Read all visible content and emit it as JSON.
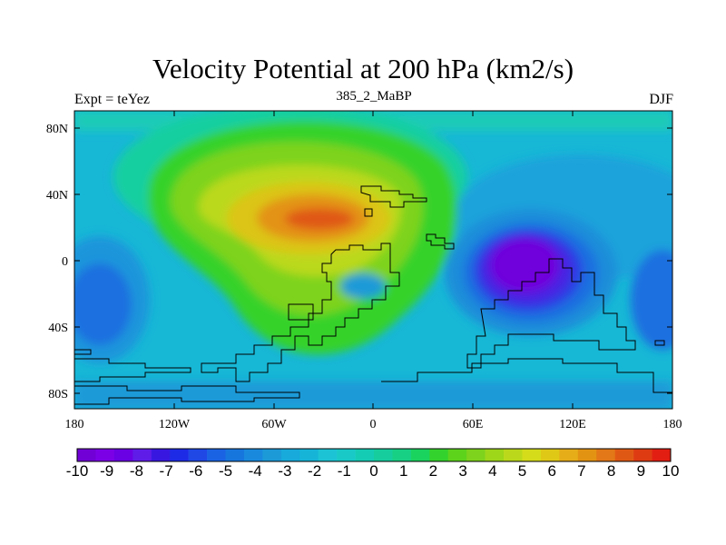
{
  "title": "Velocity Potential at 200 hPa (km2/s)",
  "subtitle_left": "Expt = teYez",
  "subtitle_center": "385_2_MaBP",
  "subtitle_right": "DJF",
  "y_tick_labels": [
    "80N",
    "40N",
    "0",
    "40S",
    "80S"
  ],
  "x_tick_labels": [
    "180",
    "120W",
    "60W",
    "0",
    "60E",
    "120E",
    "180"
  ],
  "colorbar": {
    "labels": [
      "-10",
      "-9",
      "-8",
      "-7",
      "-6",
      "-5",
      "-4",
      "-3",
      "-2",
      "-1",
      "0",
      "1",
      "2",
      "3",
      "4",
      "5",
      "6",
      "7",
      "8",
      "9",
      "10"
    ],
    "colors": [
      "#7100d6",
      "#7b00e6",
      "#6a00e4",
      "#5f1ce8",
      "#3818e0",
      "#1e2be6",
      "#1f48e5",
      "#1a63e3",
      "#1776de",
      "#1989de",
      "#1c9ad8",
      "#17aadb",
      "#16b5d8",
      "#1cc3d4",
      "#18c9c8",
      "#14ccb4",
      "#16cd9e",
      "#18d084",
      "#1ad35e",
      "#34d22c",
      "#5dd31c",
      "#7ed31c",
      "#9ed619",
      "#bbd91a",
      "#d5dc1a",
      "#e0c816",
      "#e6ad19",
      "#e39312",
      "#e27817",
      "#e05914",
      "#de3b12",
      "#e21e12"
    ]
  },
  "chart_data": {
    "type": "contour-map",
    "variable": "Velocity Potential at 200 hPa",
    "units": "km2/s",
    "experiment": "teYez",
    "case": "385_2_MaBP",
    "season": "DJF",
    "lon_range": [
      -180,
      180
    ],
    "lat_range": [
      -90,
      90
    ],
    "contour_range": [
      -10,
      10
    ],
    "contour_interval": 1,
    "features": [
      {
        "kind": "maximum",
        "lon": -30,
        "lat": 25,
        "approx_value": 9
      },
      {
        "kind": "minimum",
        "lon": 95,
        "lat": -5,
        "approx_value": -9.5
      },
      {
        "kind": "secondary-minimum",
        "lon": 175,
        "lat": -20,
        "approx_value": -5
      }
    ]
  }
}
